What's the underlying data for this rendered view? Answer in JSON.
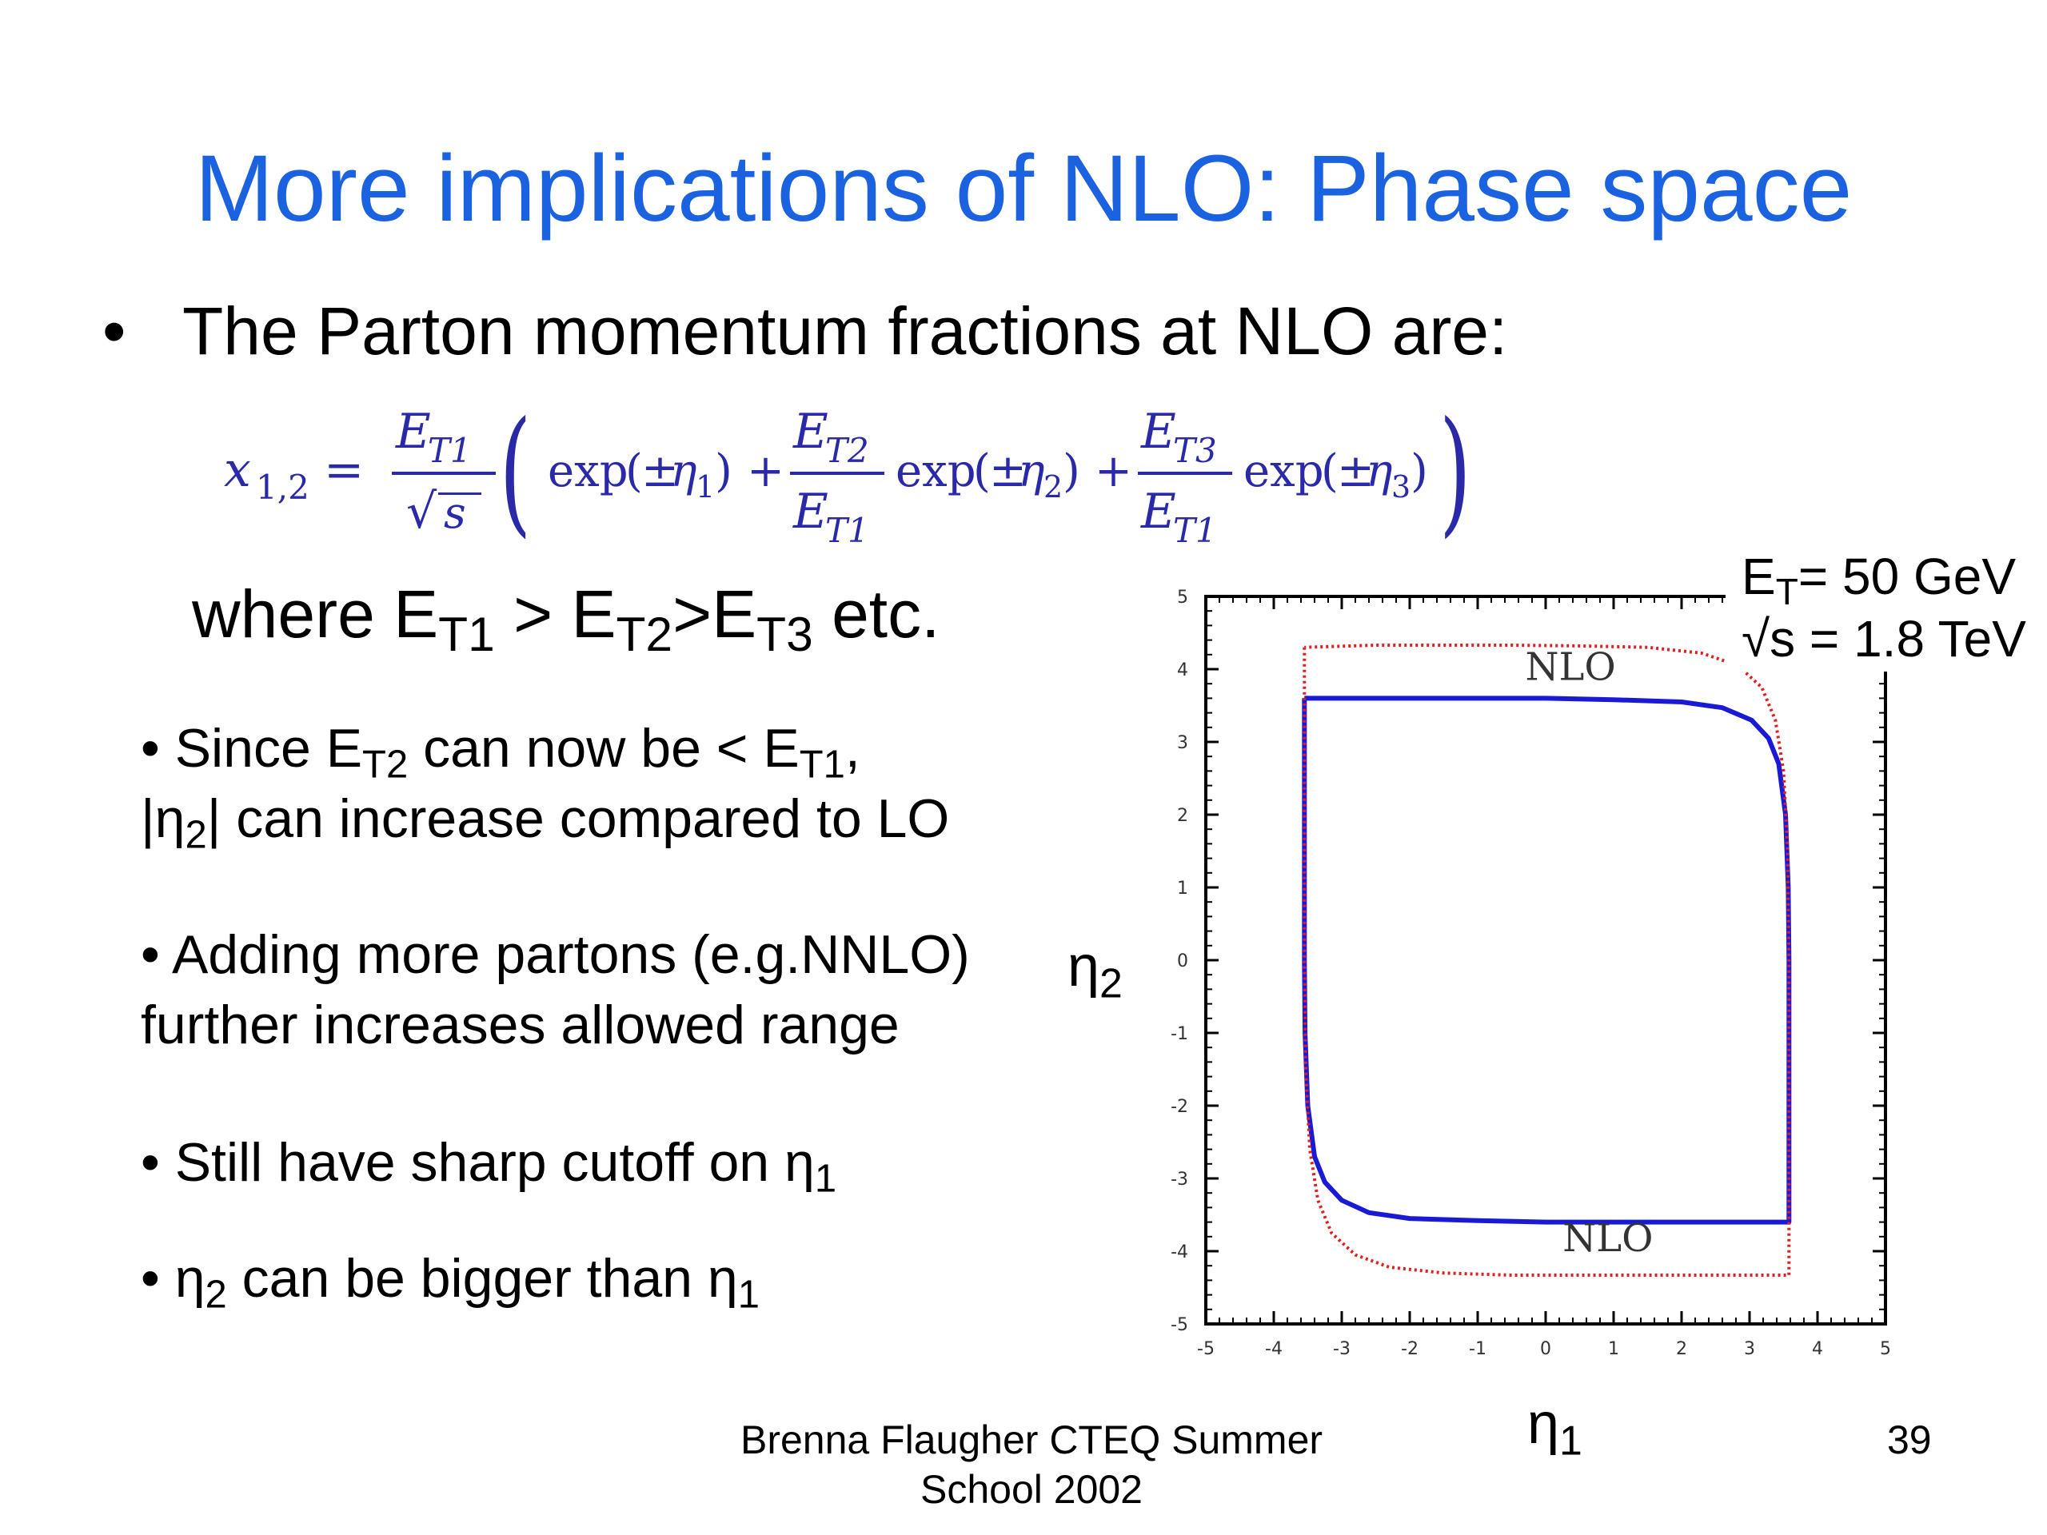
{
  "slide": {
    "title": "More implications of NLO: Phase space",
    "bullet_main": "The Parton momentum fractions at NLO are:",
    "formula": {
      "lhs": "x",
      "lhs_sub": "1,2",
      "ET": "E",
      "T1": "T1",
      "T2": "T2",
      "T3": "T3",
      "sqrt_s": "s",
      "exp": "exp",
      "pm": "±",
      "eta": "η",
      "idx1": "1",
      "idx2": "2",
      "idx3": "3"
    },
    "where": {
      "prefix": "where  E",
      "s1": "T1",
      "gt1": " > E",
      "s2": "T2",
      "gt2": ">E",
      "s3": "T3",
      "suffix": " etc."
    },
    "bullets": {
      "b1_line1_a": "• Since E",
      "b1_line1_sub1": "T2",
      "b1_line1_b": " can now be < E",
      "b1_line1_sub2": "T1",
      "b1_line1_c": ",",
      "b1_line2_a": "|η",
      "b1_line2_sub": "2",
      "b1_line2_b": "| can increase compared to LO",
      "b2_line1": "• Adding more partons (e.g.NNLO)",
      "b2_line2": "further increases allowed range",
      "b3_a": "• Still have sharp cutoff on η",
      "b3_sub": "1",
      "b4_a": "• η",
      "b4_sub1": "2",
      "b4_b": " can be bigger than η",
      "b4_sub2": "1"
    },
    "annotation": {
      "line1_a": "E",
      "line1_sub": "T",
      "line1_b": "= 50 GeV",
      "line2": "√s = 1.8 TeV"
    },
    "footer_line1": "Brenna Flaugher CTEQ Summer",
    "footer_line2": "School 2002",
    "page_number": "39"
  },
  "chart_data": {
    "type": "line",
    "xlabel": "η",
    "xlabel_sub": "1",
    "ylabel": "η",
    "ylabel_sub": "2",
    "xlim": [
      -5,
      5
    ],
    "ylim": [
      -5,
      5
    ],
    "ticks": [
      -5,
      -4,
      -3,
      -2,
      -1,
      0,
      1,
      2,
      3,
      4,
      5
    ],
    "grid": false,
    "annotations": [
      "NLO",
      "NLO"
    ],
    "series": [
      {
        "style": "solid",
        "color": "#1a1ad6",
        "x": [
          -3.55,
          -3.55,
          -3.54,
          -3.5,
          -3.4,
          -3.25,
          -3.0,
          -2.6,
          -2.0,
          -1.0,
          0.0,
          1.0,
          2.0,
          3.0,
          3.58,
          3.58,
          3.57,
          3.53,
          3.43,
          3.28,
          3.03,
          2.6,
          2.0,
          1.0,
          0.0,
          -1.0,
          -2.0,
          -3.0,
          -3.55
        ],
        "y": [
          3.6,
          0.0,
          -1.0,
          -2.0,
          -2.7,
          -3.05,
          -3.3,
          -3.47,
          -3.55,
          -3.58,
          -3.6,
          -3.6,
          -3.6,
          -3.6,
          -3.6,
          0.0,
          1.0,
          2.0,
          2.7,
          3.05,
          3.3,
          3.47,
          3.55,
          3.58,
          3.6,
          3.6,
          3.6,
          3.6,
          3.6
        ]
      },
      {
        "style": "dotted",
        "color": "#e02020",
        "x": [
          -3.55,
          -3.55,
          -3.53,
          -3.47,
          -3.35,
          -3.15,
          -2.8,
          -2.3,
          -1.5,
          -0.5,
          0.5,
          1.5,
          2.5,
          3.58,
          3.58,
          3.56,
          3.5,
          3.38,
          3.18,
          2.83,
          2.3,
          1.5,
          0.5,
          -0.5,
          -1.5,
          -2.5,
          -3.55
        ],
        "y": [
          4.3,
          0.0,
          -1.5,
          -2.6,
          -3.3,
          -3.75,
          -4.05,
          -4.22,
          -4.3,
          -4.33,
          -4.33,
          -4.33,
          -4.33,
          -4.33,
          0.0,
          1.5,
          2.6,
          3.3,
          3.75,
          4.05,
          4.22,
          4.3,
          4.32,
          4.33,
          4.33,
          4.33,
          4.3
        ]
      }
    ]
  }
}
